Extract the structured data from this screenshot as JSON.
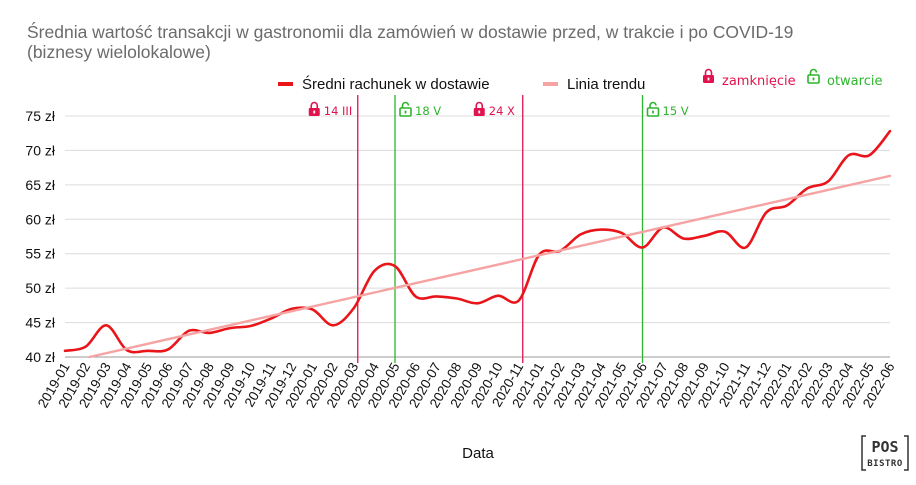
{
  "chart_data": {
    "type": "line",
    "title": "Średnia wartość transakcji w gastronomii dla zamówień w dostawie przed, w trakcie i po COVID-19",
    "subtitle": "(biznesy wielolokalowe)",
    "xlabel": "Data",
    "ylabel": "",
    "ylim": [
      40,
      75
    ],
    "y_ticks": [
      40,
      45,
      50,
      55,
      60,
      65,
      70,
      75
    ],
    "y_tick_suffix": " zł",
    "grid": "horizontal",
    "legend_position": "top",
    "categories": [
      "2019-01",
      "2019-02",
      "2019-03",
      "2019-04",
      "2019-05",
      "2019-06",
      "2019-07",
      "2019-08",
      "2019-09",
      "2019-10",
      "2019-11",
      "2019-12",
      "2020-01",
      "2020-02",
      "2020-03",
      "2020-04",
      "2020-05",
      "2020-06",
      "2020-07",
      "2020-08",
      "2020-09",
      "2020-10",
      "2020-11",
      "2021-01",
      "2021-02",
      "2021-03",
      "2021-04",
      "2021-05",
      "2021-06",
      "2021-07",
      "2021-08",
      "2021-09",
      "2021-10",
      "2021-11",
      "2021-12",
      "2022-01",
      "2022-02",
      "2022-03",
      "2022-04",
      "2022-05",
      "2022-06"
    ],
    "series": [
      {
        "name": "Średni rachunek w dostawie",
        "color": "#e8161b",
        "points": [
          [
            "2019-01",
            40.9
          ],
          [
            "2019-02",
            41.5
          ],
          [
            "2019-03",
            44.6
          ],
          [
            "2019-04",
            41.0
          ],
          [
            "2019-05",
            40.9
          ],
          [
            "2019-06",
            41.1
          ],
          [
            "2019-07",
            43.8
          ],
          [
            "2019-08",
            43.5
          ],
          [
            "2019-09",
            44.2
          ],
          [
            "2019-10",
            44.5
          ],
          [
            "2019-11",
            45.6
          ],
          [
            "2019-12",
            47.0
          ],
          [
            "2020-01",
            46.9
          ],
          [
            "2020-02",
            44.6
          ],
          [
            "2020-03",
            47.1
          ],
          [
            "2020-04",
            52.5
          ],
          [
            "2020-05",
            53.2
          ],
          [
            "2020-06",
            48.8
          ],
          [
            "2020-07",
            48.8
          ],
          [
            "2020-08",
            48.5
          ],
          [
            "2020-09",
            47.8
          ],
          [
            "2020-10",
            48.9
          ],
          [
            "2020-11",
            48.2
          ],
          [
            "2021-01",
            54.9
          ],
          [
            "2021-02",
            55.4
          ],
          [
            "2021-03",
            57.8
          ],
          [
            "2021-04",
            58.5
          ],
          [
            "2021-05",
            58.0
          ],
          [
            "2021-06",
            55.9
          ],
          [
            "2021-07",
            58.8
          ],
          [
            "2021-08",
            57.2
          ],
          [
            "2021-09",
            57.6
          ],
          [
            "2021-10",
            58.2
          ],
          [
            "2021-11",
            55.9
          ],
          [
            "2021-12",
            61.0
          ],
          [
            "2022-01",
            62.0
          ],
          [
            "2022-02",
            64.5
          ],
          [
            "2022-03",
            65.5
          ],
          [
            "2022-04",
            69.3
          ],
          [
            "2022-05",
            69.3
          ],
          [
            "2022-06",
            72.8
          ]
        ]
      },
      {
        "name": "Linia trendu",
        "color": "#f5a3a3",
        "points": [
          [
            "2019-01",
            39.2
          ],
          [
            "2022-06",
            66.3
          ]
        ]
      }
    ],
    "events": [
      {
        "x": "2020-03",
        "label": "14 III",
        "kind": "closing",
        "color": "#e0134f"
      },
      {
        "x": "2020-05",
        "label": "18 V",
        "kind": "opening",
        "color": "#2db52d"
      },
      {
        "x": "2020-11",
        "label": "24 X",
        "kind": "closing",
        "color": "#e0134f"
      },
      {
        "x": "2021-06",
        "label": "15 V",
        "kind": "opening",
        "color": "#2db52d"
      }
    ],
    "event_legend": [
      {
        "kind": "closing",
        "label": "zamknięcie",
        "color": "#e0134f"
      },
      {
        "kind": "opening",
        "label": "otwarcie",
        "color": "#2db52d"
      }
    ]
  },
  "logo": {
    "line1": "POS",
    "line2": "BISTRO"
  }
}
